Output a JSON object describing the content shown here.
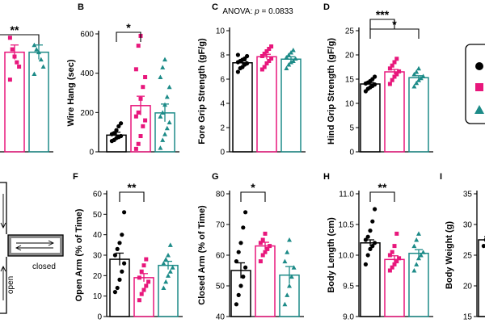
{
  "colors": {
    "group1": "#000000",
    "group2": "#e8177c",
    "group3": "#1d8b88"
  },
  "maze": {
    "open_label": "open",
    "closed_label": "closed"
  },
  "chart_data": [
    {
      "panel": "",
      "type": "bar",
      "ylabel": "",
      "ylim": [
        0,
        4000
      ],
      "means": [
        null,
        3450,
        3450
      ],
      "errors": [
        null,
        250,
        250
      ],
      "points": [
        [],
        [
          3950,
          3550,
          3300,
          3100,
          2950,
          2500
        ],
        [
          3700,
          3550,
          3450,
          3200,
          2950,
          2700
        ]
      ],
      "significance": [
        {
          "label": "**",
          "from": 0,
          "to": 2
        }
      ]
    },
    {
      "panel": "B",
      "type": "bar",
      "ylabel": "Wire Hang (sec)",
      "ylim": [
        0,
        600
      ],
      "yticks": [
        0,
        200,
        400,
        600
      ],
      "means": [
        85,
        235,
        198
      ],
      "errors": [
        15,
        48,
        45
      ],
      "points": [
        [
          55,
          60,
          70,
          75,
          80,
          90,
          95,
          110,
          130,
          145
        ],
        [
          15,
          40,
          80,
          130,
          160,
          180,
          200,
          270,
          330,
          380,
          420,
          540,
          590
        ],
        [
          20,
          60,
          90,
          120,
          150,
          180,
          200,
          240,
          280,
          330,
          380,
          430,
          470
        ]
      ],
      "significance": [
        {
          "label": "*",
          "from": 0,
          "to": 1
        }
      ]
    },
    {
      "panel": "C",
      "type": "bar",
      "ylabel": "Fore Grip Strength (gF/g)",
      "ylim": [
        0,
        10
      ],
      "yticks": [
        0,
        2,
        4,
        6,
        8,
        10
      ],
      "annotation": "ANOVA: p = 0.0833",
      "means": [
        7.35,
        7.85,
        7.65
      ],
      "errors": [
        0.15,
        0.2,
        0.2
      ],
      "points": [
        [
          6.6,
          6.9,
          7.0,
          7.2,
          7.3,
          7.4,
          7.5,
          7.6,
          7.7,
          7.9,
          8.0
        ],
        [
          6.8,
          7.0,
          7.3,
          7.5,
          7.7,
          7.9,
          8.1,
          8.3,
          8.5,
          8.7
        ],
        [
          6.9,
          7.2,
          7.4,
          7.5,
          7.7,
          7.8,
          8.0,
          8.2,
          8.4
        ]
      ],
      "significance": []
    },
    {
      "panel": "D",
      "type": "bar",
      "ylabel": "Hind Grip Strength (gF/g)",
      "ylim": [
        0,
        25
      ],
      "yticks": [
        0,
        5,
        10,
        15,
        20,
        25
      ],
      "means": [
        14.0,
        16.5,
        15.3
      ],
      "errors": [
        0.3,
        0.5,
        0.4
      ],
      "points": [
        [
          12.5,
          13.0,
          13.3,
          13.6,
          13.9,
          14.1,
          14.3,
          14.6,
          15.0,
          15.5
        ],
        [
          14.0,
          14.8,
          15.5,
          16.0,
          16.6,
          17.2,
          17.8,
          18.5,
          19.2
        ],
        [
          13.5,
          14.2,
          14.8,
          15.2,
          15.6,
          16.0,
          16.5,
          17.2
        ]
      ],
      "significance": [
        {
          "label": "***",
          "from": 0,
          "to": 1
        },
        {
          "label": "*",
          "from": 0,
          "to": 2
        }
      ]
    },
    {
      "panel": "F",
      "type": "bar",
      "ylabel": "Open Arm (% of Time)",
      "ylim": [
        0,
        60
      ],
      "yticks": [
        0,
        10,
        20,
        30,
        40,
        50,
        60
      ],
      "means": [
        28,
        19,
        25
      ],
      "errors": [
        3,
        2,
        2
      ],
      "points": [
        [
          12,
          14,
          18,
          22,
          26,
          30,
          33,
          36,
          40,
          51
        ],
        [
          8,
          11,
          13,
          15,
          17,
          19,
          22,
          25,
          28
        ],
        [
          14,
          17,
          20,
          22,
          24,
          26,
          28,
          30,
          35
        ]
      ],
      "significance": [
        {
          "label": "**",
          "from": 0,
          "to": 1
        }
      ]
    },
    {
      "panel": "G",
      "type": "bar",
      "ylabel": "Closed Arm (% of Time)",
      "ylim": [
        40,
        80
      ],
      "yticks": [
        40,
        50,
        60,
        70,
        80
      ],
      "means": [
        55,
        63,
        53.5
      ],
      "errors": [
        2.5,
        1.2,
        2.8
      ],
      "points": [
        [
          44,
          47,
          50,
          53,
          56,
          58,
          61,
          64,
          69,
          74
        ],
        [
          58,
          60,
          61,
          62,
          63,
          64,
          65,
          67
        ],
        [
          44,
          47,
          50,
          53,
          56,
          58,
          61,
          65
        ]
      ],
      "significance": [
        {
          "label": "*",
          "from": 0,
          "to": 1
        }
      ]
    },
    {
      "panel": "H",
      "type": "bar",
      "ylabel": "Body Length (cm)",
      "ylim": [
        9.0,
        11.0
      ],
      "yticks": [
        9.0,
        9.5,
        10.0,
        10.5,
        11.0
      ],
      "means": [
        10.2,
        9.93,
        10.03
      ],
      "errors": [
        0.05,
        0.06,
        0.06
      ],
      "points": [
        [
          9.85,
          10.0,
          10.1,
          10.15,
          10.2,
          10.25,
          10.3,
          10.4,
          10.55,
          10.75
        ],
        [
          9.75,
          9.8,
          9.85,
          9.9,
          9.95,
          10.0,
          10.05,
          10.15,
          10.35
        ],
        [
          9.75,
          9.85,
          9.95,
          10.0,
          10.05,
          10.15,
          10.25,
          10.35
        ]
      ],
      "significance": [
        {
          "label": "**",
          "from": 0,
          "to": 1
        }
      ]
    },
    {
      "panel": "I",
      "type": "bar",
      "ylabel": "Body Weight (g)",
      "ylim": [
        15,
        35
      ],
      "yticks": [
        15,
        20,
        25,
        30,
        35
      ],
      "means": [
        27.5
      ],
      "errors": [
        0.5
      ],
      "points": [
        [
          26.5,
          27.5,
          28.5,
          29.5
        ]
      ],
      "significance": []
    }
  ]
}
